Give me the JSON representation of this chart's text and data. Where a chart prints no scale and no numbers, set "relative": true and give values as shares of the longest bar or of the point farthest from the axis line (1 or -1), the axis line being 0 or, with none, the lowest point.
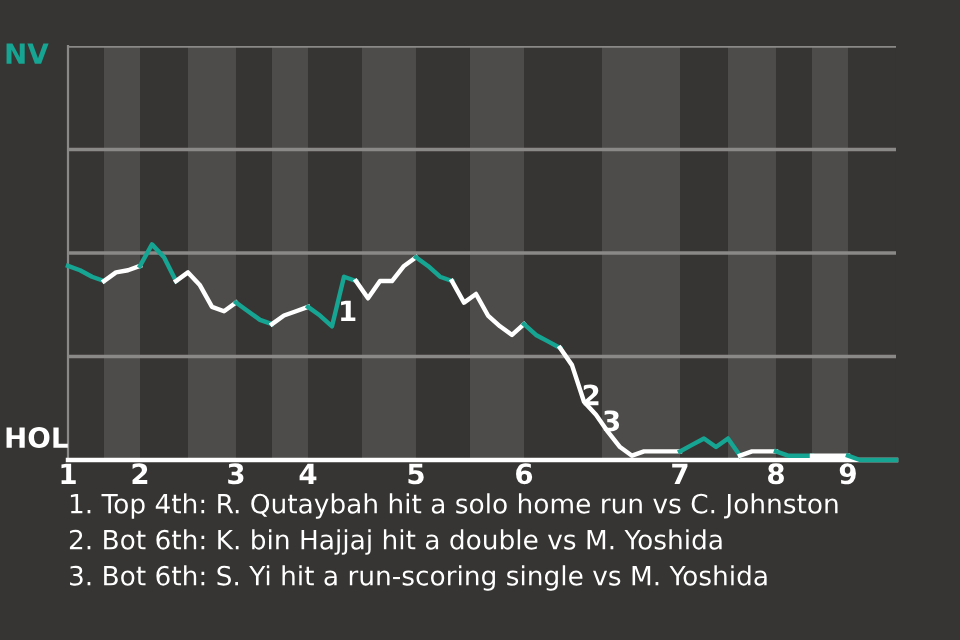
{
  "chart_data": {
    "type": "line",
    "relative": true,
    "categories": [
      "1",
      null,
      null,
      null,
      null,
      null,
      "2",
      null,
      null,
      null,
      null,
      null,
      null,
      null,
      "3",
      null,
      null,
      null,
      null,
      null,
      "4",
      null,
      null,
      null,
      null,
      null,
      null,
      null,
      null,
      "5",
      null,
      null,
      null,
      null,
      null,
      null,
      null,
      null,
      "6",
      null,
      null,
      null,
      null,
      null,
      null,
      null,
      null,
      null,
      null,
      null,
      null,
      "7",
      null,
      null,
      null,
      null,
      null,
      null,
      null,
      "8",
      null,
      null,
      null,
      null,
      null,
      "9",
      null,
      null,
      null,
      null
    ],
    "series": [
      {
        "color": "#16a493",
        "values": [
          0.9,
          0.88,
          0.85,
          0.83,
          null,
          null,
          null,
          null,
          null,
          null,
          null,
          null,
          null,
          null,
          null,
          null,
          null,
          null,
          null,
          null,
          null,
          null,
          null,
          null,
          null,
          null,
          null,
          null,
          null,
          null,
          null,
          null,
          null,
          null,
          null,
          null,
          null,
          null,
          null,
          null,
          null,
          null,
          null,
          null,
          null,
          null,
          null,
          null,
          null,
          null,
          null,
          null,
          null,
          null,
          null,
          null,
          null,
          null,
          null,
          null,
          null,
          null,
          null,
          null,
          null,
          null,
          null,
          null,
          null,
          null
        ]
      },
      {
        "color": "#ffffff",
        "values": [
          null,
          null,
          null,
          0.83,
          0.87,
          0.88,
          0.9,
          null,
          null,
          null,
          null,
          null,
          null,
          null,
          null,
          null,
          null,
          null,
          null,
          null,
          null,
          null,
          null,
          null,
          null,
          null,
          null,
          null,
          null,
          null,
          null,
          null,
          null,
          null,
          null,
          null,
          null,
          null,
          null,
          null,
          null,
          null,
          null,
          null,
          null,
          null,
          null,
          null,
          null,
          null,
          null,
          null,
          null,
          null,
          null,
          null,
          null,
          null,
          null,
          null,
          null,
          null,
          null,
          null,
          null,
          null,
          null,
          null,
          null,
          null
        ]
      },
      {
        "color": "#16a493",
        "values": [
          null,
          null,
          null,
          null,
          null,
          null,
          0.9,
          1,
          0.94,
          0.83,
          null,
          null,
          null,
          null,
          null,
          null,
          null,
          null,
          null,
          null,
          null,
          null,
          null,
          null,
          null,
          null,
          null,
          null,
          null,
          null,
          null,
          null,
          null,
          null,
          null,
          null,
          null,
          null,
          null,
          null,
          null,
          null,
          null,
          null,
          null,
          null,
          null,
          null,
          null,
          null,
          null,
          null,
          null,
          null,
          null,
          null,
          null,
          null,
          null,
          null,
          null,
          null,
          null,
          null,
          null,
          null,
          null,
          null,
          null,
          null
        ]
      },
      {
        "color": "#ffffff",
        "values": [
          null,
          null,
          null,
          null,
          null,
          null,
          null,
          null,
          null,
          0.83,
          0.87,
          0.81,
          0.71,
          0.69,
          0.73,
          null,
          null,
          null,
          null,
          null,
          null,
          null,
          null,
          null,
          null,
          null,
          null,
          null,
          null,
          null,
          null,
          null,
          null,
          null,
          null,
          null,
          null,
          null,
          null,
          null,
          null,
          null,
          null,
          null,
          null,
          null,
          null,
          null,
          null,
          null,
          null,
          null,
          null,
          null,
          null,
          null,
          null,
          null,
          null,
          null,
          null,
          null,
          null,
          null,
          null,
          null,
          null,
          null,
          null,
          null
        ]
      },
      {
        "color": "#16a493",
        "values": [
          null,
          null,
          null,
          null,
          null,
          null,
          null,
          null,
          null,
          null,
          null,
          null,
          null,
          null,
          0.73,
          0.69,
          0.65,
          0.63,
          null,
          null,
          null,
          null,
          null,
          null,
          null,
          null,
          null,
          null,
          null,
          null,
          null,
          null,
          null,
          null,
          null,
          null,
          null,
          null,
          null,
          null,
          null,
          null,
          null,
          null,
          null,
          null,
          null,
          null,
          null,
          null,
          null,
          null,
          null,
          null,
          null,
          null,
          null,
          null,
          null,
          null,
          null,
          null,
          null,
          null,
          null,
          null,
          null,
          null,
          null,
          null
        ]
      },
      {
        "color": "#ffffff",
        "values": [
          null,
          null,
          null,
          null,
          null,
          null,
          null,
          null,
          null,
          null,
          null,
          null,
          null,
          null,
          null,
          null,
          null,
          0.63,
          0.67,
          0.69,
          0.71,
          null,
          null,
          null,
          null,
          null,
          null,
          null,
          null,
          null,
          null,
          null,
          null,
          null,
          null,
          null,
          null,
          null,
          null,
          null,
          null,
          null,
          null,
          null,
          null,
          null,
          null,
          null,
          null,
          null,
          null,
          null,
          null,
          null,
          null,
          null,
          null,
          null,
          null,
          null,
          null,
          null,
          null,
          null,
          null,
          null,
          null,
          null,
          null,
          null
        ]
      },
      {
        "color": "#16a493",
        "values": [
          null,
          null,
          null,
          null,
          null,
          null,
          null,
          null,
          null,
          null,
          null,
          null,
          null,
          null,
          null,
          null,
          null,
          null,
          null,
          null,
          0.71,
          0.67,
          0.62,
          0.85,
          0.83,
          null,
          null,
          null,
          null,
          null,
          null,
          null,
          null,
          null,
          null,
          null,
          null,
          null,
          null,
          null,
          null,
          null,
          null,
          null,
          null,
          null,
          null,
          null,
          null,
          null,
          null,
          null,
          null,
          null,
          null,
          null,
          null,
          null,
          null,
          null,
          null,
          null,
          null,
          null,
          null,
          null,
          null,
          null,
          null,
          null
        ]
      },
      {
        "color": "#ffffff",
        "values": [
          null,
          null,
          null,
          null,
          null,
          null,
          null,
          null,
          null,
          null,
          null,
          null,
          null,
          null,
          null,
          null,
          null,
          null,
          null,
          null,
          null,
          null,
          null,
          null,
          0.83,
          0.75,
          0.83,
          0.83,
          0.9,
          0.94,
          null,
          null,
          null,
          null,
          null,
          null,
          null,
          null,
          null,
          null,
          null,
          null,
          null,
          null,
          null,
          null,
          null,
          null,
          null,
          null,
          null,
          null,
          null,
          null,
          null,
          null,
          null,
          null,
          null,
          null,
          null,
          null,
          null,
          null,
          null,
          null,
          null,
          null,
          null,
          null
        ]
      },
      {
        "color": "#16a493",
        "values": [
          null,
          null,
          null,
          null,
          null,
          null,
          null,
          null,
          null,
          null,
          null,
          null,
          null,
          null,
          null,
          null,
          null,
          null,
          null,
          null,
          null,
          null,
          null,
          null,
          null,
          null,
          null,
          null,
          null,
          0.94,
          0.9,
          0.85,
          0.83,
          null,
          null,
          null,
          null,
          null,
          null,
          null,
          null,
          null,
          null,
          null,
          null,
          null,
          null,
          null,
          null,
          null,
          null,
          null,
          null,
          null,
          null,
          null,
          null,
          null,
          null,
          null,
          null,
          null,
          null,
          null,
          null,
          null,
          null,
          null,
          null,
          null
        ]
      },
      {
        "color": "#ffffff",
        "values": [
          null,
          null,
          null,
          null,
          null,
          null,
          null,
          null,
          null,
          null,
          null,
          null,
          null,
          null,
          null,
          null,
          null,
          null,
          null,
          null,
          null,
          null,
          null,
          null,
          null,
          null,
          null,
          null,
          null,
          null,
          null,
          null,
          0.83,
          0.73,
          0.77,
          0.67,
          0.62,
          0.58,
          0.63,
          null,
          null,
          null,
          null,
          null,
          null,
          null,
          null,
          null,
          null,
          null,
          null,
          null,
          null,
          null,
          null,
          null,
          null,
          null,
          null,
          null,
          null,
          null,
          null,
          null,
          null,
          null,
          null,
          null,
          null,
          null
        ]
      },
      {
        "color": "#16a493",
        "values": [
          null,
          null,
          null,
          null,
          null,
          null,
          null,
          null,
          null,
          null,
          null,
          null,
          null,
          null,
          null,
          null,
          null,
          null,
          null,
          null,
          null,
          null,
          null,
          null,
          null,
          null,
          null,
          null,
          null,
          null,
          null,
          null,
          null,
          null,
          null,
          null,
          null,
          null,
          0.63,
          0.58,
          0.55,
          0.52,
          null,
          null,
          null,
          null,
          null,
          null,
          null,
          null,
          null,
          null,
          null,
          null,
          null,
          null,
          null,
          null,
          null,
          null,
          null,
          null,
          null,
          null,
          null,
          null,
          null,
          null,
          null,
          null
        ]
      },
      {
        "color": "#ffffff",
        "values": [
          null,
          null,
          null,
          null,
          null,
          null,
          null,
          null,
          null,
          null,
          null,
          null,
          null,
          null,
          null,
          null,
          null,
          null,
          null,
          null,
          null,
          null,
          null,
          null,
          null,
          null,
          null,
          null,
          null,
          null,
          null,
          null,
          null,
          null,
          null,
          null,
          null,
          null,
          null,
          null,
          null,
          0.52,
          0.44,
          0.27,
          0.21,
          0.13,
          0.06,
          0.02,
          0.04,
          0.04,
          0.04,
          0.04,
          null,
          null,
          null,
          null,
          null,
          null,
          null,
          null,
          null,
          null,
          null,
          null,
          null,
          null,
          null,
          null,
          null,
          null
        ]
      },
      {
        "color": "#16a493",
        "values": [
          null,
          null,
          null,
          null,
          null,
          null,
          null,
          null,
          null,
          null,
          null,
          null,
          null,
          null,
          null,
          null,
          null,
          null,
          null,
          null,
          null,
          null,
          null,
          null,
          null,
          null,
          null,
          null,
          null,
          null,
          null,
          null,
          null,
          null,
          null,
          null,
          null,
          null,
          null,
          null,
          null,
          null,
          null,
          null,
          null,
          null,
          null,
          null,
          null,
          null,
          null,
          0.04,
          0.07,
          0.1,
          0.06,
          0.1,
          0.02,
          null,
          null,
          null,
          null,
          null,
          null,
          null,
          null,
          null,
          null,
          null,
          null,
          null
        ]
      },
      {
        "color": "#ffffff",
        "values": [
          null,
          null,
          null,
          null,
          null,
          null,
          null,
          null,
          null,
          null,
          null,
          null,
          null,
          null,
          null,
          null,
          null,
          null,
          null,
          null,
          null,
          null,
          null,
          null,
          null,
          null,
          null,
          null,
          null,
          null,
          null,
          null,
          null,
          null,
          null,
          null,
          null,
          null,
          null,
          null,
          null,
          null,
          null,
          null,
          null,
          null,
          null,
          null,
          null,
          null,
          null,
          null,
          null,
          null,
          null,
          null,
          0.02,
          0.04,
          0.04,
          0.04,
          null,
          null,
          null,
          null,
          null,
          null,
          null,
          null,
          null,
          null
        ]
      },
      {
        "color": "#16a493",
        "values": [
          null,
          null,
          null,
          null,
          null,
          null,
          null,
          null,
          null,
          null,
          null,
          null,
          null,
          null,
          null,
          null,
          null,
          null,
          null,
          null,
          null,
          null,
          null,
          null,
          null,
          null,
          null,
          null,
          null,
          null,
          null,
          null,
          null,
          null,
          null,
          null,
          null,
          null,
          null,
          null,
          null,
          null,
          null,
          null,
          null,
          null,
          null,
          null,
          null,
          null,
          null,
          null,
          null,
          null,
          null,
          null,
          null,
          null,
          null,
          0.04,
          0.02,
          0.02,
          0.02,
          null,
          null,
          null,
          null,
          null,
          null,
          null
        ]
      },
      {
        "color": "#ffffff",
        "values": [
          null,
          null,
          null,
          null,
          null,
          null,
          null,
          null,
          null,
          null,
          null,
          null,
          null,
          null,
          null,
          null,
          null,
          null,
          null,
          null,
          null,
          null,
          null,
          null,
          null,
          null,
          null,
          null,
          null,
          null,
          null,
          null,
          null,
          null,
          null,
          null,
          null,
          null,
          null,
          null,
          null,
          null,
          null,
          null,
          null,
          null,
          null,
          null,
          null,
          null,
          null,
          null,
          null,
          null,
          null,
          null,
          null,
          null,
          null,
          null,
          null,
          null,
          0.02,
          0.02,
          0.02,
          0.02,
          null,
          null,
          null,
          null
        ]
      },
      {
        "color": "#16a493",
        "values": [
          null,
          null,
          null,
          null,
          null,
          null,
          null,
          null,
          null,
          null,
          null,
          null,
          null,
          null,
          null,
          null,
          null,
          null,
          null,
          null,
          null,
          null,
          null,
          null,
          null,
          null,
          null,
          null,
          null,
          null,
          null,
          null,
          null,
          null,
          null,
          null,
          null,
          null,
          null,
          null,
          null,
          null,
          null,
          null,
          null,
          null,
          null,
          null,
          null,
          null,
          null,
          null,
          null,
          null,
          null,
          null,
          null,
          null,
          null,
          null,
          null,
          null,
          null,
          null,
          null,
          0.02,
          0,
          0,
          0,
          0
        ]
      }
    ],
    "ref_lines": [
      {
        "axis": "y",
        "value": 0.48,
        "color": "#8a8987"
      },
      {
        "axis": "y",
        "value": 0.96,
        "color": "#8a8987"
      },
      {
        "axis": "y",
        "value": 1.44,
        "color": "#8a8987"
      },
      {
        "axis": "y",
        "value": 1.92,
        "color": "#8a8987"
      }
    ],
    "annotations": [
      "NV",
      "HOL",
      "1",
      "2",
      "3",
      "1. Top 4th: R. Qutaybah hit a solo home run vs C. Johnston",
      "2. Bot 6th: K. bin Hajjaj hit a double vs M. Yoshida",
      "3. Bot 6th: S. Yi hit a run-scoring single vs M. Yoshida"
    ]
  }
}
